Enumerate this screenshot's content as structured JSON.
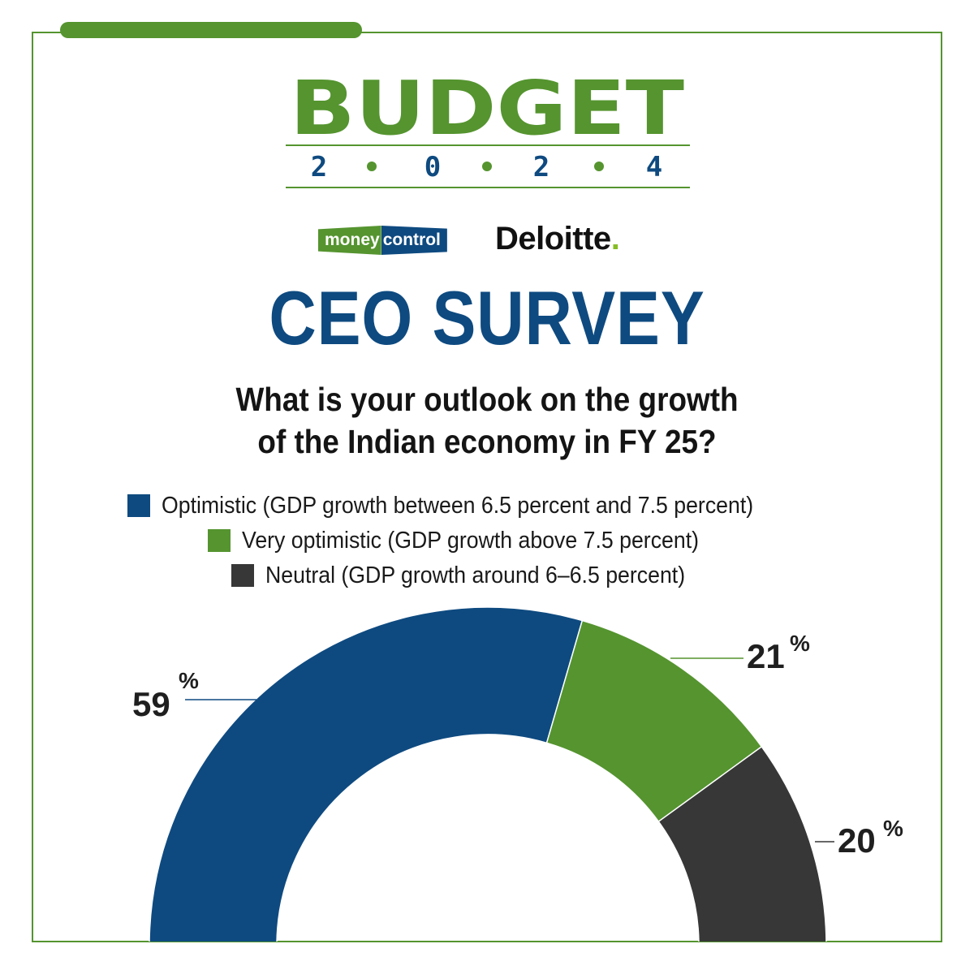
{
  "branding": {
    "budget_word": "BUDGET",
    "budget_year_chars": [
      "2",
      "0",
      "2",
      "4"
    ],
    "moneycontrol_part1": "money",
    "moneycontrol_part2": "control",
    "deloitte": "Deloitte",
    "deloitte_dot": "."
  },
  "colors": {
    "brand_green": "#55942f",
    "brand_blue": "#0e4a80",
    "neutral_dark": "#373737",
    "deloitte_green": "#86bc25"
  },
  "chart_data": {
    "type": "pie",
    "variant": "half-donut",
    "title": "CEO SURVEY",
    "subtitle_lines": [
      "What is your outlook on the growth",
      "of the Indian economy in FY 25?"
    ],
    "legend_placement": "top",
    "series": [
      {
        "name": "Optimistic (GDP growth between 6.5 percent and 7.5 percent)",
        "value": 59,
        "label": "59",
        "color": "#0e4a80"
      },
      {
        "name": "Very optimistic (GDP growth above 7.5 percent)",
        "value": 21,
        "label": "21",
        "color": "#55942f"
      },
      {
        "name": "Neutral (GDP growth around 6–6.5 percent)",
        "value": 20,
        "label": "20",
        "color": "#373737"
      }
    ],
    "unit_symbol": "%"
  }
}
